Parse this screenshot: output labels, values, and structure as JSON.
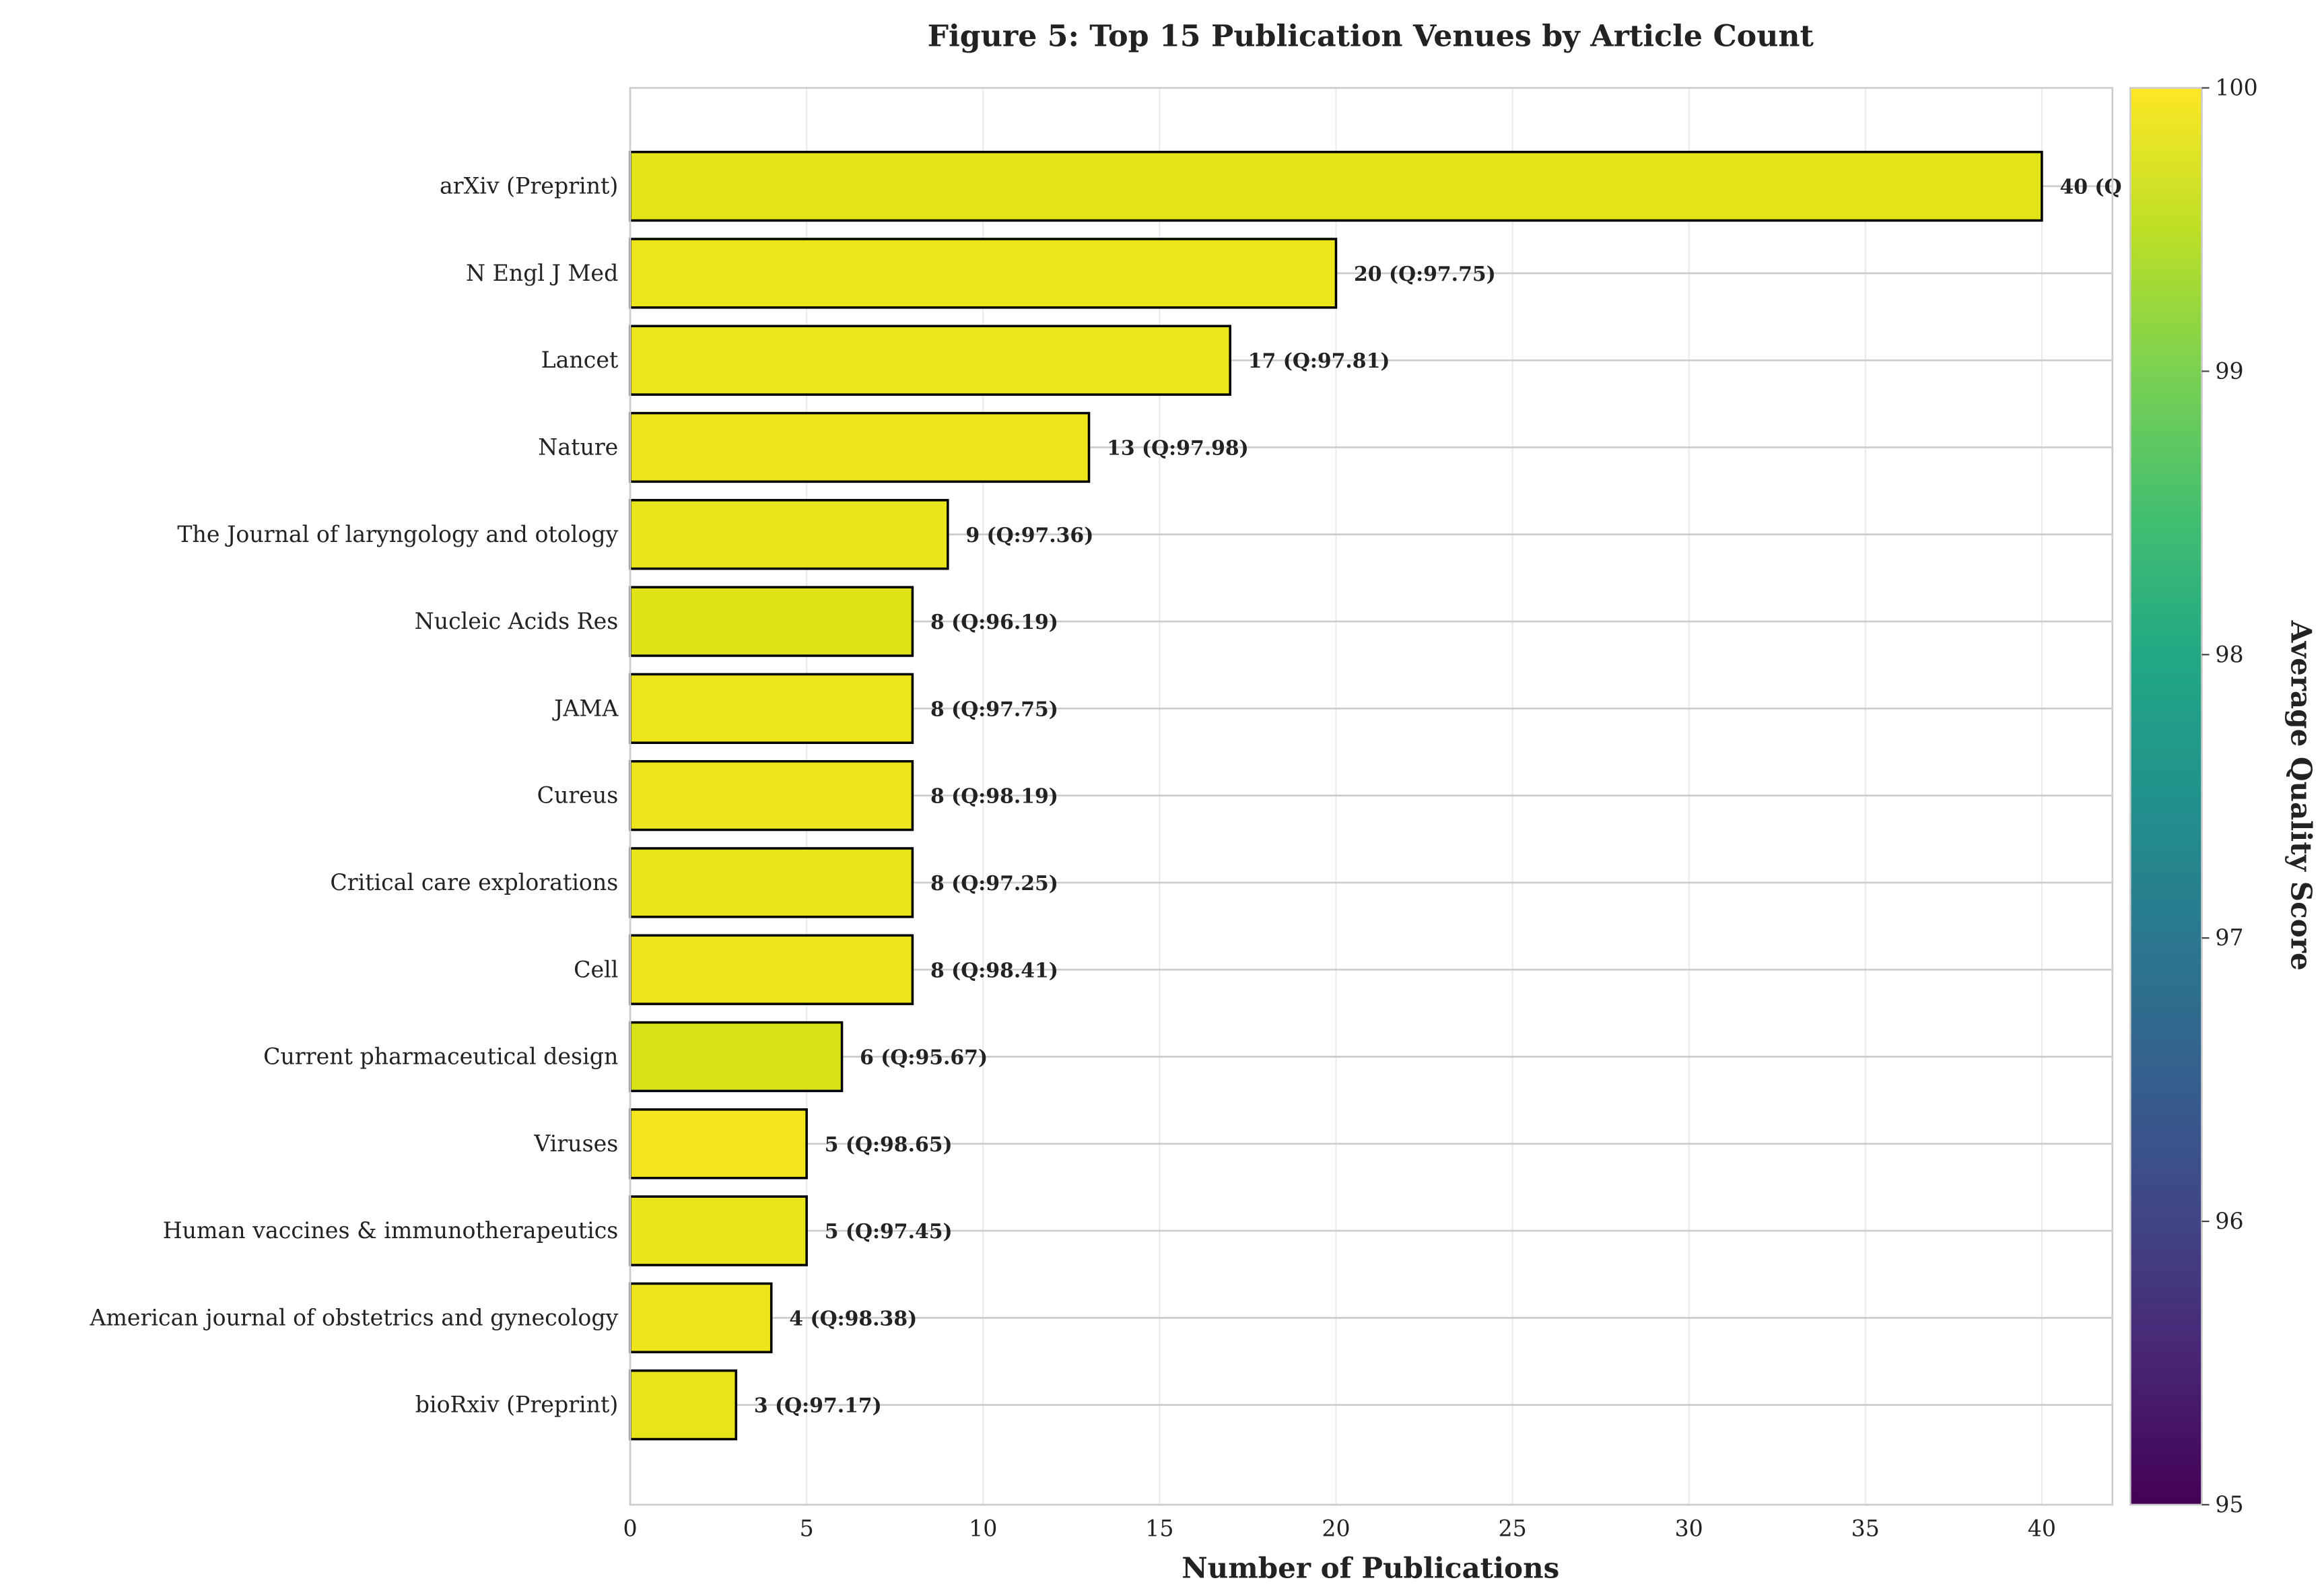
{
  "chart_data": {
    "type": "bar",
    "orientation": "horizontal",
    "title": "Figure 5: Top 15 Publication Venues by Article Count",
    "xlabel": "Number of Publications",
    "ylabel": "",
    "xlim": [
      0,
      42
    ],
    "xticks": [
      0,
      5,
      10,
      15,
      20,
      25,
      30,
      35,
      40
    ],
    "grid": true,
    "categories": [
      "arXiv (Preprint)",
      "N Engl J Med",
      "Lancet",
      "Nature",
      "The Journal of laryngology and otology",
      "Nucleic Acids Res",
      "JAMA",
      "Cureus",
      "Critical care explorations",
      "Cell",
      "Current pharmaceutical design",
      "Viruses",
      "Human vaccines & immunotherapeutics",
      "American journal of obstetrics and gynecology",
      "bioRxiv (Preprint)"
    ],
    "values": [
      40,
      20,
      17,
      13,
      9,
      8,
      8,
      8,
      8,
      8,
      6,
      5,
      5,
      4,
      3
    ],
    "quality": [
      null,
      97.75,
      97.81,
      97.98,
      97.36,
      96.19,
      97.75,
      98.19,
      97.25,
      98.41,
      95.67,
      98.65,
      97.45,
      98.38,
      97.17
    ],
    "data_labels": [
      "40 (Q",
      "20 (Q:97.75)",
      "17 (Q:97.81)",
      "13 (Q:97.98)",
      "9 (Q:97.36)",
      "8 (Q:96.19)",
      "8 (Q:97.75)",
      "8 (Q:98.19)",
      "8 (Q:97.25)",
      "8 (Q:98.41)",
      "6 (Q:95.67)",
      "5 (Q:98.65)",
      "5 (Q:97.45)",
      "4 (Q:98.38)",
      "3 (Q:97.17)"
    ],
    "bar_colors": [
      "#e2e418",
      "#ece51b",
      "#ece51b",
      "#eee51c",
      "#e9e51a",
      "#dfe318",
      "#ece51b",
      "#efe51c",
      "#e8e419",
      "#f0e51c",
      "#d8e219",
      "#f3e51e",
      "#eae51a",
      "#f0e51c",
      "#e7e419"
    ],
    "bar_edge_color": "#000000",
    "colorbar": {
      "label": "Average Quality Score",
      "colormap": "viridis",
      "range": [
        95,
        100
      ],
      "ticks": [
        95,
        96,
        97,
        98,
        99,
        100
      ]
    }
  }
}
